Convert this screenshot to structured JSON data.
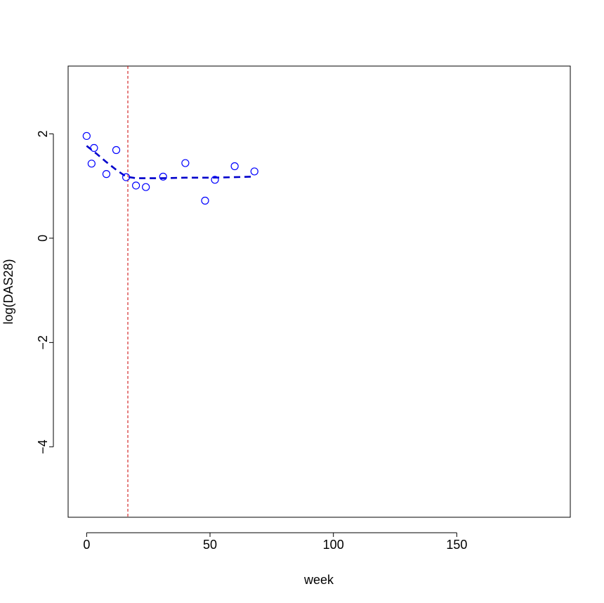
{
  "chart_data": {
    "type": "scatter",
    "title": "",
    "xlabel": "week",
    "ylabel": "log(DAS28)",
    "xlim": [
      -7.5,
      196
    ],
    "ylim": [
      -5.35,
      3.3
    ],
    "x_ticks": [
      0,
      50,
      100,
      150
    ],
    "y_ticks": [
      2,
      0,
      -2,
      -4
    ],
    "grid": false,
    "legend": "none",
    "series": [
      {
        "kind": "points",
        "marker": "open-circle",
        "color": "#0000ff",
        "x": [
          0,
          2,
          3,
          8,
          12,
          16,
          20,
          24,
          31,
          40,
          48,
          52,
          60,
          68
        ],
        "y": [
          1.96,
          1.43,
          1.73,
          1.23,
          1.69,
          1.17,
          1.01,
          0.98,
          1.18,
          1.44,
          0.72,
          1.12,
          1.38,
          1.28
        ]
      },
      {
        "kind": "line",
        "style": "dashed",
        "color": "#0000cc",
        "x": [
          0,
          4,
          8,
          12,
          16,
          20,
          30,
          40,
          50,
          60,
          68
        ],
        "y": [
          1.77,
          1.62,
          1.46,
          1.31,
          1.18,
          1.15,
          1.15,
          1.16,
          1.16,
          1.17,
          1.18
        ]
      }
    ],
    "reference_lines": [
      {
        "orientation": "vertical",
        "x": 16.7,
        "style": "dashed",
        "color": "#cc0000"
      }
    ]
  }
}
